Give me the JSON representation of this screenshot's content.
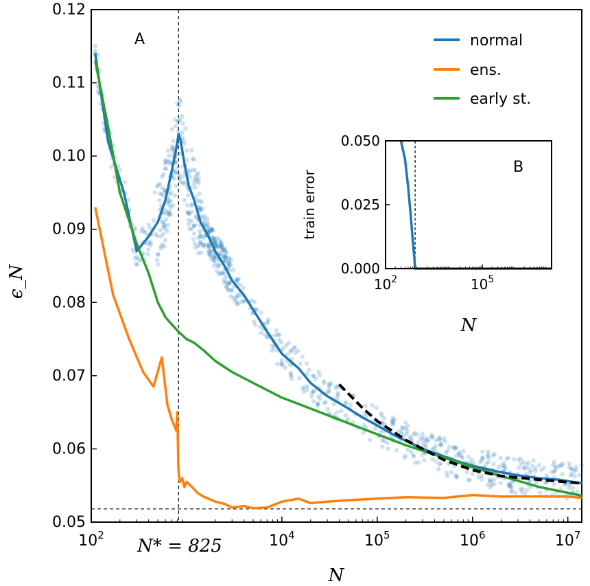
{
  "chart_data": [
    {
      "panel": "A",
      "type": "line",
      "xlabel": "N",
      "ylabel": "ϵ_N",
      "xscale": "log",
      "xlim": [
        100,
        14000000
      ],
      "ylim": [
        0.05,
        0.12
      ],
      "xticks": [
        {
          "value": 100,
          "label": "10",
          "exp": "2"
        },
        {
          "value": 10000,
          "label": "10",
          "exp": "4"
        },
        {
          "value": 100000,
          "label": "10",
          "exp": "5"
        },
        {
          "value": 1000000,
          "label": "10",
          "exp": "6"
        },
        {
          "value": 10000000,
          "label": "10",
          "exp": "7"
        }
      ],
      "yticks": [
        {
          "value": 0.05,
          "label": "0.05"
        },
        {
          "value": 0.06,
          "label": "0.06"
        },
        {
          "value": 0.07,
          "label": "0.07"
        },
        {
          "value": 0.08,
          "label": "0.08"
        },
        {
          "value": 0.09,
          "label": "0.09"
        },
        {
          "value": 0.1,
          "label": "0.10"
        },
        {
          "value": 0.11,
          "label": "0.11"
        },
        {
          "value": 0.12,
          "label": "0.12"
        }
      ],
      "annotations": {
        "nstar_label": "N* = 825",
        "nstar_value": 825,
        "hline_value": 0.0518
      },
      "legend": {
        "position": "top-right"
      },
      "series": [
        {
          "name": "normal",
          "color": "#1f77b4",
          "x": [
            110,
            150,
            220,
            300,
            400,
            500,
            600,
            700,
            780,
            825,
            870,
            950,
            1050,
            1200,
            1400,
            1700,
            2000,
            2500,
            3000,
            4000,
            5000,
            7000,
            10000,
            15000,
            20000,
            30000,
            50000,
            70000,
            100000,
            150000,
            200000,
            300000,
            500000,
            700000,
            1000000,
            2000000,
            3000000,
            5000000,
            8000000,
            14000000
          ],
          "y": [
            0.114,
            0.102,
            0.095,
            0.087,
            0.089,
            0.091,
            0.094,
            0.098,
            0.101,
            0.103,
            0.102,
            0.099,
            0.096,
            0.094,
            0.091,
            0.089,
            0.087,
            0.085,
            0.083,
            0.081,
            0.079,
            0.076,
            0.073,
            0.071,
            0.069,
            0.0672,
            0.0655,
            0.0643,
            0.0632,
            0.0619,
            0.0611,
            0.06,
            0.059,
            0.0583,
            0.0577,
            0.0568,
            0.0564,
            0.056,
            0.0558,
            0.0553
          ]
        },
        {
          "name": "ens.",
          "color": "#ff7f0e",
          "x": [
            110,
            170,
            250,
            350,
            450,
            550,
            630,
            700,
            780,
            800,
            820,
            830,
            850,
            900,
            950,
            1000,
            1100,
            1200,
            1300,
            1500,
            1700,
            2000,
            2500,
            3000,
            4000,
            5000,
            7000,
            10000,
            15000,
            20000,
            30000,
            50000,
            100000,
            200000,
            500000,
            1000000,
            2000000,
            5000000,
            10000000,
            14000000
          ],
          "y": [
            0.093,
            0.081,
            0.075,
            0.0705,
            0.0685,
            0.0725,
            0.066,
            0.064,
            0.0625,
            0.065,
            0.0575,
            0.0565,
            0.0555,
            0.056,
            0.0548,
            0.0555,
            0.055,
            0.0545,
            0.054,
            0.0535,
            0.0532,
            0.0528,
            0.0525,
            0.052,
            0.0522,
            0.0519,
            0.052,
            0.0528,
            0.0532,
            0.0526,
            0.0528,
            0.053,
            0.0532,
            0.0534,
            0.0533,
            0.0537,
            0.0535,
            0.0535,
            0.0535,
            0.0533
          ]
        },
        {
          "name": "early st.",
          "color": "#2ca02c",
          "x": [
            110,
            150,
            200,
            300,
            400,
            500,
            600,
            700,
            825,
            1000,
            1200,
            1500,
            2000,
            3000,
            5000,
            10000,
            20000,
            50000,
            100000,
            200000,
            500000,
            1000000,
            2000000,
            5000000,
            10000000,
            14000000
          ],
          "y": [
            0.113,
            0.104,
            0.095,
            0.088,
            0.084,
            0.08,
            0.078,
            0.077,
            0.076,
            0.075,
            0.0745,
            0.0735,
            0.072,
            0.0705,
            0.069,
            0.067,
            0.0655,
            0.0635,
            0.062,
            0.0605,
            0.0588,
            0.0575,
            0.0563,
            0.0548,
            0.054,
            0.0536
          ]
        },
        {
          "name": "",
          "color": "#000000",
          "style": "dashed",
          "x": [
            40000,
            70000,
            100000,
            200000,
            500000,
            1000000,
            2000000,
            5000000,
            14000000
          ],
          "y": [
            0.0688,
            0.0656,
            0.0638,
            0.0612,
            0.0585,
            0.0571,
            0.0563,
            0.0558,
            0.0553
          ]
        }
      ]
    },
    {
      "panel": "B",
      "type": "line",
      "xlabel": "N",
      "ylabel": "train error",
      "xscale": "log",
      "xlim": [
        100,
        14000000
      ],
      "ylim": [
        0,
        0.05
      ],
      "xticks": [
        {
          "value": 100,
          "label": "10",
          "exp": "2"
        },
        {
          "value": 100000,
          "label": "10",
          "exp": "5"
        }
      ],
      "yticks": [
        {
          "value": 0,
          "label": "0.000"
        },
        {
          "value": 0.025,
          "label": "0.025"
        },
        {
          "value": 0.05,
          "label": "0.050"
        }
      ],
      "annotations": {
        "vline_value": 825
      },
      "series": [
        {
          "name": "normal",
          "color": "#1f77b4",
          "x": [
            300,
            400,
            500,
            600,
            700,
            780,
            825,
            1000,
            10000,
            100000,
            1000000,
            14000000
          ],
          "y": [
            0.05,
            0.043,
            0.032,
            0.021,
            0.011,
            0.004,
            0.0,
            0.0,
            0.0,
            0.0,
            0.0,
            0.0
          ]
        }
      ]
    }
  ]
}
